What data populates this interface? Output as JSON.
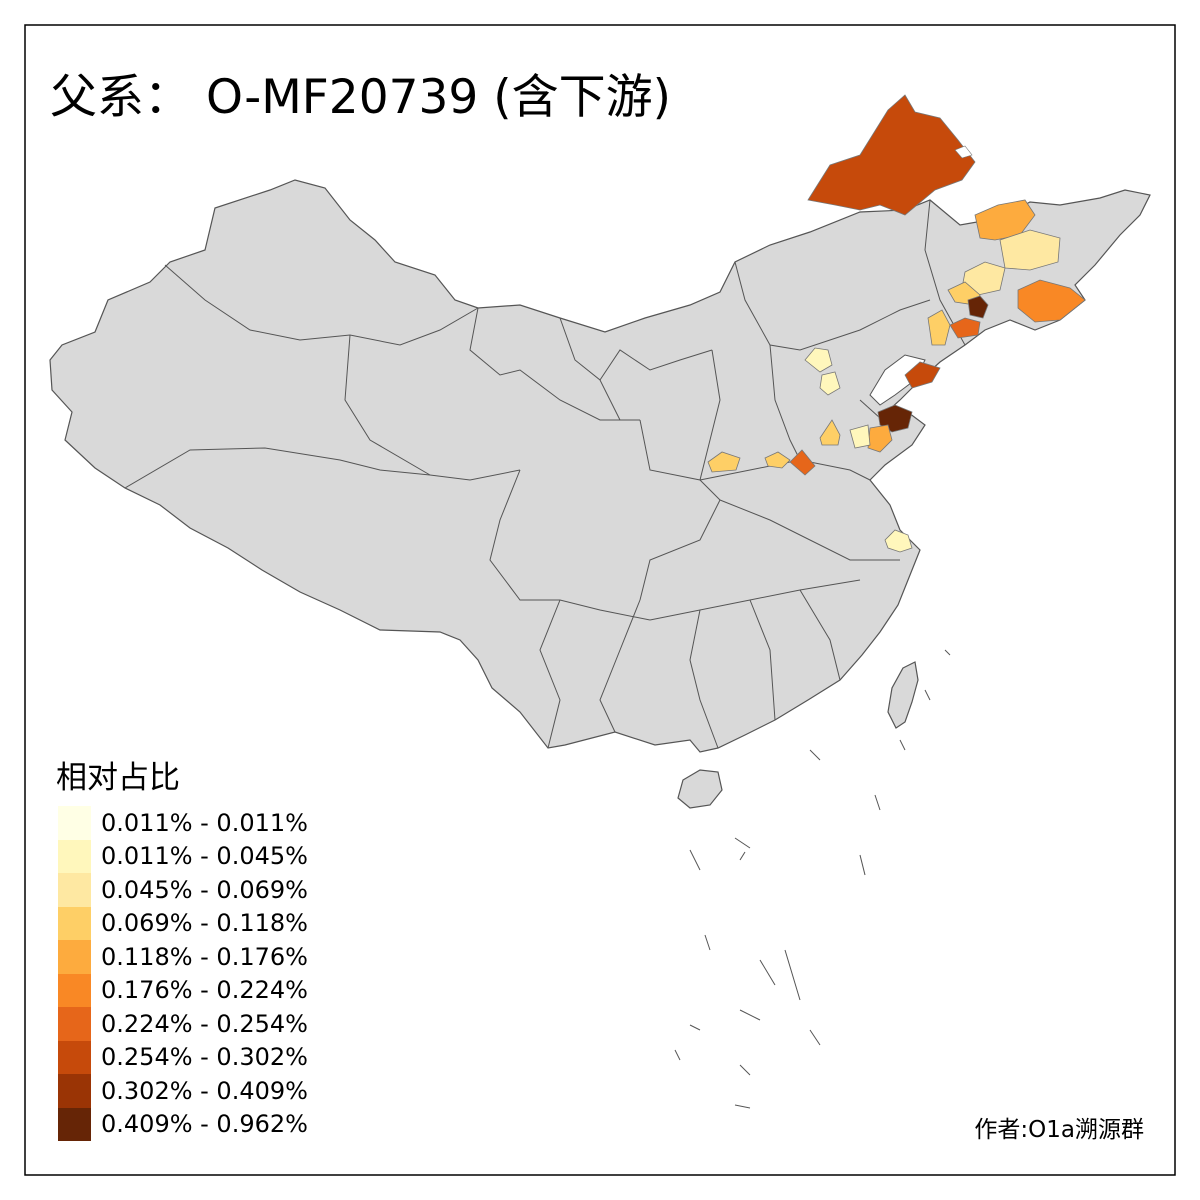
{
  "map": {
    "title": "父系： O-MF20739 (含下游)",
    "background_color": "#d9d9d9",
    "border_color": "#555555",
    "legend": {
      "title": "相对占比",
      "classes": [
        {
          "label": "0.011% - 0.011%",
          "color": "#ffffe5"
        },
        {
          "label": "0.011% - 0.045%",
          "color": "#fff7bc"
        },
        {
          "label": "0.045% - 0.069%",
          "color": "#fee8a2"
        },
        {
          "label": "0.069% - 0.118%",
          "color": "#fecf66"
        },
        {
          "label": "0.118% - 0.176%",
          "color": "#fdab3e"
        },
        {
          "label": "0.176% - 0.224%",
          "color": "#f98825"
        },
        {
          "label": "0.224% - 0.254%",
          "color": "#e6661a"
        },
        {
          "label": "0.254% - 0.302%",
          "color": "#c64a0b"
        },
        {
          "label": "0.302% - 0.409%",
          "color": "#9a3405"
        },
        {
          "label": "0.409% - 0.962%",
          "color": "#662506"
        }
      ]
    },
    "author": "作者:O1a溯源群"
  }
}
